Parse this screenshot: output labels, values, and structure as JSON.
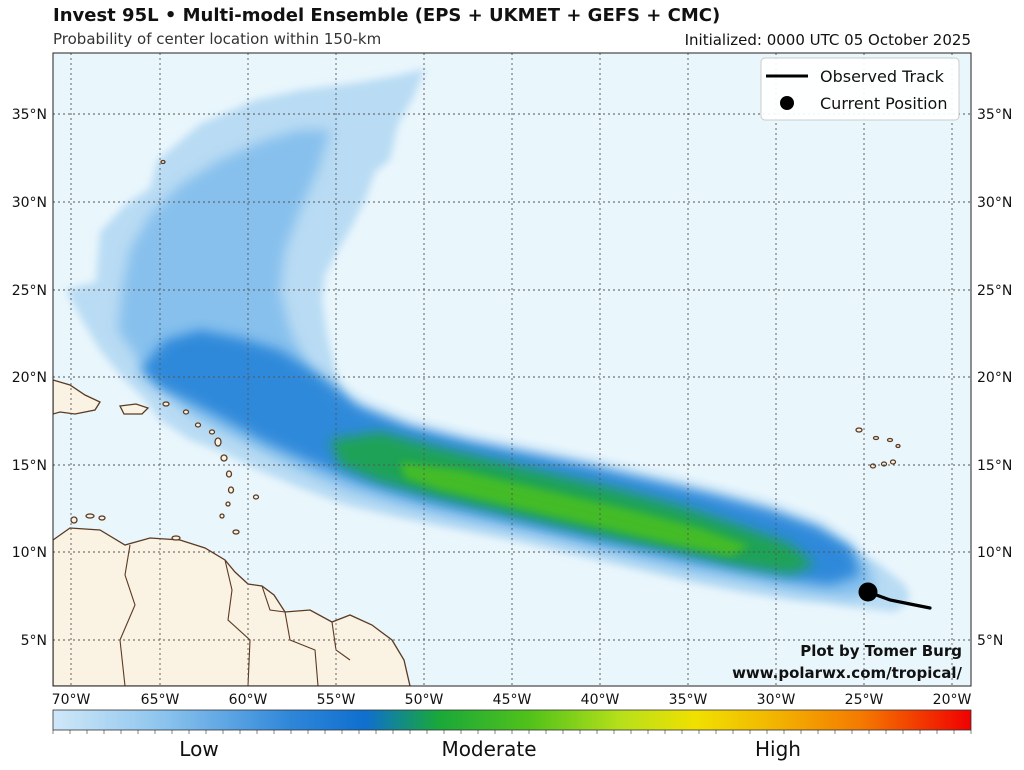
{
  "header": {
    "title": "Invest 95L • Multi-model Ensemble (EPS + UKMET + GEFS + CMC)",
    "subtitle": "Probability of center location within 150-km",
    "initialized": "Initialized: 0000 UTC 05 October 2025"
  },
  "legend": {
    "observed_track": "Observed Track",
    "current_position": "Current Position"
  },
  "credit": {
    "line1": "Plot by Tomer Burg",
    "line2": "www.polarwx.com/tropical/"
  },
  "axes": {
    "lon_ticks": [
      "70°W",
      "65°W",
      "60°W",
      "55°W",
      "50°W",
      "45°W",
      "40°W",
      "35°W",
      "30°W",
      "25°W",
      "20°W"
    ],
    "lat_ticks": [
      "5°N",
      "10°N",
      "15°N",
      "20°N",
      "25°N",
      "30°N",
      "35°N"
    ]
  },
  "colorbar": {
    "labels": [
      "Low",
      "Moderate",
      "High"
    ]
  },
  "colors": {
    "ocean": "#e9f6fc",
    "land": "#faf2e3",
    "coast": "#5a3a22",
    "track": "#000000"
  }
}
